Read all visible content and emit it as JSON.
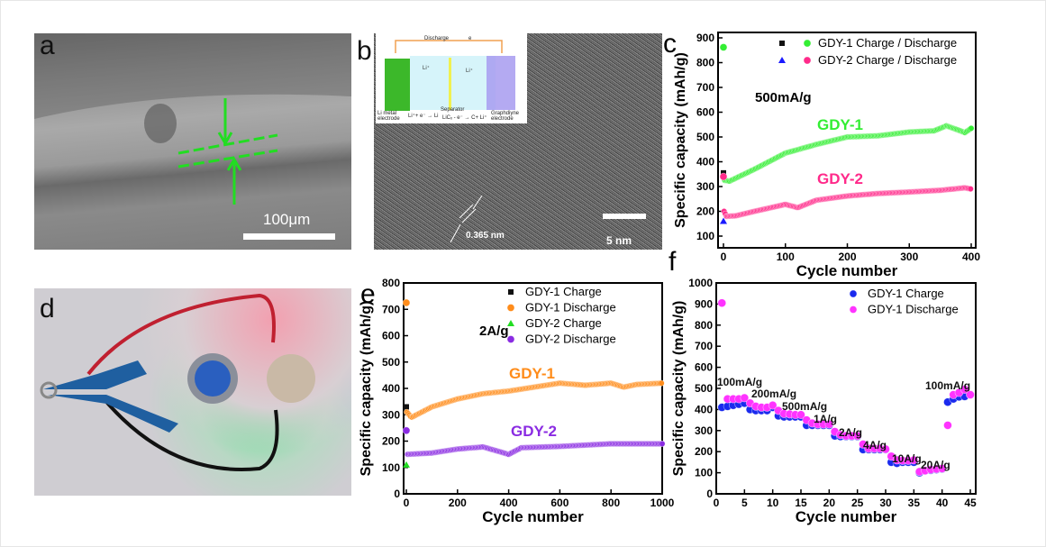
{
  "panels": {
    "a": {
      "label": "a",
      "scale_bar": "100μm"
    },
    "b": {
      "label": "b",
      "scale_bar": "5 nm",
      "lattice": "0.365 nm",
      "inset": {
        "top": "Discharge",
        "electron": "e",
        "left_electrode": "Li metal electrode",
        "left_reaction": "Li⁺+ e⁻ → Li",
        "separator": "Separator",
        "right_reaction": "LiCₓ - e⁻ → C+ Li⁺",
        "right_electrode": "Graphdiyne electrode",
        "ion": "Li⁺"
      }
    },
    "d": {
      "label": "d"
    }
  },
  "colors": {
    "gdy1_c": "#33ee33",
    "gdy2_c": "#ff2a8a",
    "gdy1_e": "#ff8c1a",
    "gdy2_e": "#8a2be2",
    "charge_black": "#000000",
    "charge_blue": "#1a1aff",
    "charge_green": "#22dd22",
    "f_charge": "#1a2aee",
    "f_discharge": "#ff33ff"
  },
  "chart_data": [
    {
      "panel": "c",
      "type": "scatter",
      "xlabel": "Cycle number",
      "ylabel": "Specific capacity (mAh/g)",
      "xlim": [
        0,
        400
      ],
      "ylim": [
        100,
        900
      ],
      "xticks": [
        0,
        100,
        200,
        300,
        400
      ],
      "yticks": [
        100,
        200,
        300,
        400,
        500,
        600,
        700,
        800,
        900
      ],
      "legend": {
        "placement": "top-right",
        "entries": [
          "GDY-1 Charge / Discharge",
          "GDY-2 Charge / Discharge"
        ]
      },
      "annotations": [
        "500mA/g",
        "GDY-1",
        "GDY-2"
      ],
      "series": [
        {
          "name": "GDY-1 Charge",
          "marker": "square",
          "points": [
            [
              0,
              355
            ]
          ]
        },
        {
          "name": "GDY-1 Discharge",
          "points": [
            [
              0,
              862
            ],
            [
              2,
              325
            ],
            [
              10,
              322
            ],
            [
              50,
              370
            ],
            [
              100,
              435
            ],
            [
              150,
              470
            ],
            [
              200,
              500
            ],
            [
              250,
              505
            ],
            [
              300,
              520
            ],
            [
              340,
              525
            ],
            [
              360,
              545
            ],
            [
              390,
              518
            ],
            [
              400,
              535
            ]
          ]
        },
        {
          "name": "GDY-2 Charge",
          "marker": "triangle",
          "points": [
            [
              0,
              160
            ]
          ]
        },
        {
          "name": "GDY-2 Discharge",
          "points": [
            [
              0,
              340
            ],
            [
              1,
              200
            ],
            [
              5,
              180
            ],
            [
              20,
              182
            ],
            [
              50,
              200
            ],
            [
              100,
              228
            ],
            [
              120,
              215
            ],
            [
              150,
              245
            ],
            [
              200,
              262
            ],
            [
              250,
              272
            ],
            [
              300,
              278
            ],
            [
              350,
              285
            ],
            [
              390,
              295
            ],
            [
              400,
              290
            ]
          ]
        }
      ]
    },
    {
      "panel": "e",
      "type": "scatter",
      "xlabel": "Cycle number",
      "ylabel": "Specific capacity (mAh/g)",
      "xlim": [
        0,
        1000
      ],
      "ylim": [
        0,
        800
      ],
      "xticks": [
        0,
        200,
        400,
        600,
        800,
        1000
      ],
      "yticks": [
        0,
        100,
        200,
        300,
        400,
        500,
        600,
        700,
        800
      ],
      "legend": {
        "placement": "top-right",
        "entries": [
          "GDY-1 Charge",
          "GDY-1 Discharge",
          "GDY-2 Charge",
          "GDY-2 Discharge"
        ]
      },
      "annotations": [
        "2A/g",
        "GDY-1",
        "GDY-2"
      ],
      "series": [
        {
          "name": "GDY-1 Charge",
          "marker": "square",
          "points": [
            [
              0,
              330
            ]
          ]
        },
        {
          "name": "GDY-1 Discharge",
          "points": [
            [
              0,
              725
            ],
            [
              2,
              310
            ],
            [
              20,
              290
            ],
            [
              100,
              330
            ],
            [
              200,
              360
            ],
            [
              300,
              380
            ],
            [
              400,
              390
            ],
            [
              500,
              405
            ],
            [
              600,
              420
            ],
            [
              700,
              412
            ],
            [
              800,
              420
            ],
            [
              850,
              405
            ],
            [
              900,
              415
            ],
            [
              1000,
              420
            ]
          ]
        },
        {
          "name": "GDY-2 Charge",
          "marker": "triangle",
          "points": [
            [
              0,
              110
            ]
          ]
        },
        {
          "name": "GDY-2 Discharge",
          "points": [
            [
              0,
              240
            ],
            [
              5,
              150
            ],
            [
              100,
              155
            ],
            [
              200,
              170
            ],
            [
              300,
              178
            ],
            [
              400,
              150
            ],
            [
              450,
              175
            ],
            [
              600,
              180
            ],
            [
              800,
              190
            ],
            [
              1000,
              190
            ]
          ]
        }
      ]
    },
    {
      "panel": "f",
      "type": "scatter",
      "xlabel": "Cycle number",
      "ylabel": "Specific capacity (mAh/g)",
      "xlim": [
        0,
        45
      ],
      "ylim": [
        0,
        1000
      ],
      "xticks": [
        0,
        5,
        10,
        15,
        20,
        25,
        30,
        35,
        40,
        45
      ],
      "yticks": [
        0,
        100,
        200,
        300,
        400,
        500,
        600,
        700,
        800,
        900,
        1000
      ],
      "legend": {
        "placement": "top-right",
        "entries": [
          "GDY-1 Charge",
          "GDY-1 Discharge"
        ]
      },
      "annotations": [
        "100mA/g",
        "200mA/g",
        "500mA/g",
        "1A/g",
        "2A/g",
        "4A/g",
        "10A/g",
        "20A/g",
        "100mA/g"
      ],
      "cycles": [
        1,
        2,
        3,
        4,
        5,
        6,
        7,
        8,
        9,
        10,
        11,
        12,
        13,
        14,
        15,
        16,
        17,
        18,
        19,
        20,
        21,
        22,
        23,
        24,
        25,
        26,
        27,
        28,
        29,
        30,
        31,
        32,
        33,
        34,
        35,
        36,
        37,
        38,
        39,
        40,
        41,
        42,
        43,
        44,
        45
      ],
      "series": [
        {
          "name": "GDY-1 Charge",
          "values": [
            410,
            415,
            420,
            425,
            430,
            400,
            395,
            395,
            395,
            410,
            370,
            365,
            365,
            365,
            365,
            325,
            325,
            325,
            325,
            325,
            275,
            272,
            272,
            272,
            272,
            210,
            210,
            210,
            210,
            210,
            150,
            145,
            150,
            150,
            150,
            100,
            110,
            112,
            115,
            118,
            435,
            450,
            460,
            462,
            470
          ]
        },
        {
          "name": "GDY-1 Discharge",
          "values": [
            905,
            450,
            450,
            450,
            455,
            430,
            415,
            410,
            410,
            420,
            395,
            380,
            378,
            375,
            375,
            350,
            335,
            330,
            330,
            330,
            295,
            280,
            275,
            275,
            275,
            235,
            215,
            215,
            215,
            212,
            178,
            160,
            158,
            158,
            160,
            105,
            110,
            115,
            118,
            120,
            325,
            470,
            480,
            495,
            470
          ]
        }
      ]
    }
  ]
}
